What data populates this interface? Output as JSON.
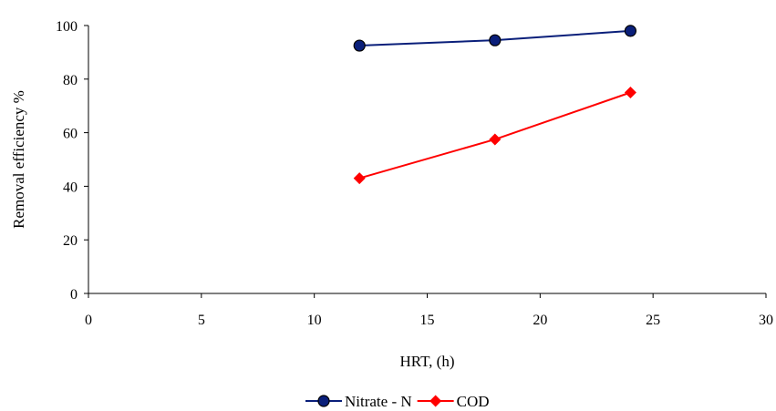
{
  "chart_data": {
    "type": "line",
    "xlabel": "HRT, (h)",
    "ylabel": "Removal efficiency  %",
    "xlim": [
      0,
      30
    ],
    "ylim": [
      0,
      100
    ],
    "xticks": [
      0,
      5,
      10,
      15,
      20,
      25,
      30
    ],
    "yticks": [
      0,
      20,
      40,
      60,
      80,
      100
    ],
    "grid": false,
    "legend_position": "bottom",
    "series": [
      {
        "name": "Nitrate - N",
        "x": [
          12,
          18,
          24
        ],
        "values": [
          92.5,
          94.5,
          98
        ],
        "color": "#0a1f7a",
        "marker": "circle"
      },
      {
        "name": "COD",
        "x": [
          12,
          18,
          24
        ],
        "values": [
          43,
          57.5,
          75
        ],
        "color": "#ff0000",
        "marker": "diamond"
      }
    ]
  }
}
